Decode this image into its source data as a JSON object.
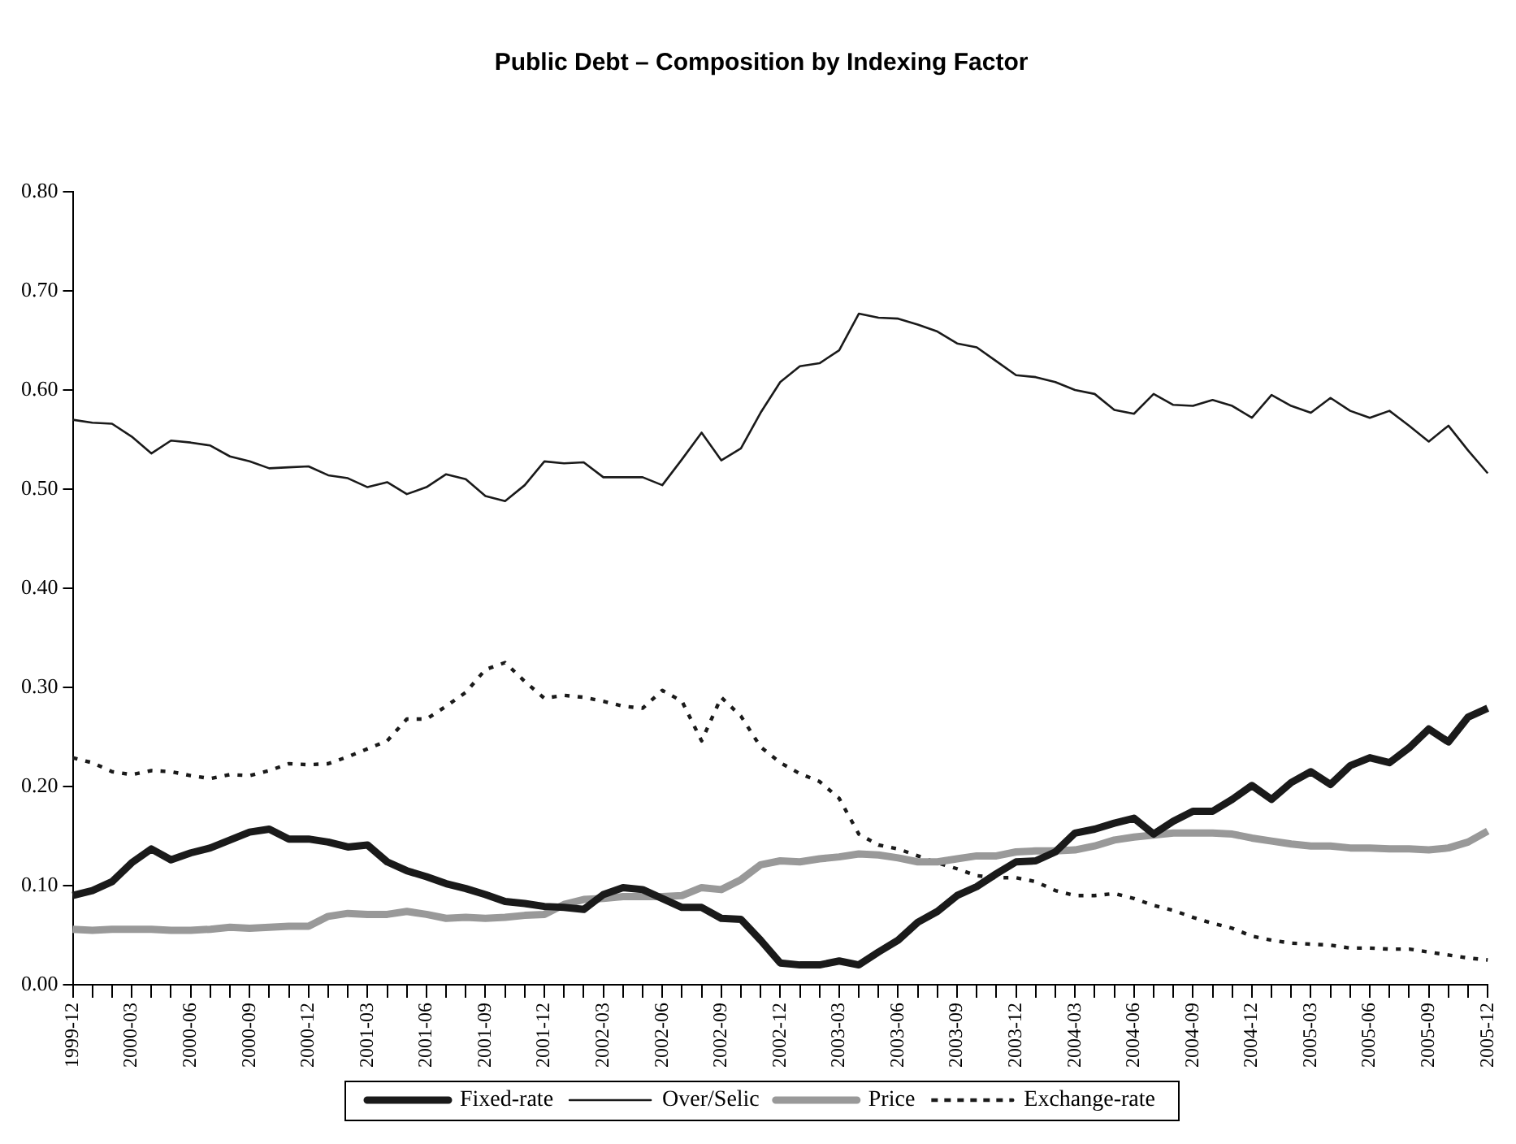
{
  "chart_data": {
    "type": "line",
    "title": "Public Debt – Composition by Indexing Factor",
    "categories": [
      "1999-12",
      null,
      null,
      "2000-03",
      null,
      null,
      "2000-06",
      null,
      null,
      "2000-09",
      null,
      null,
      "2000-12",
      null,
      null,
      "2001-03",
      null,
      null,
      "2001-06",
      null,
      null,
      "2001-09",
      null,
      null,
      "2001-12",
      null,
      null,
      "2002-03",
      null,
      null,
      "2002-06",
      null,
      null,
      "2002-09",
      null,
      null,
      "2002-12",
      null,
      null,
      "2003-03",
      null,
      null,
      "2003-06",
      null,
      null,
      "2003-09",
      null,
      null,
      "2003-12",
      null,
      null,
      "2004-03",
      null,
      null,
      "2004-06",
      null,
      null,
      "2004-09",
      null,
      null,
      "2004-12",
      null,
      null,
      "2005-03",
      null,
      null,
      "2005-06",
      null,
      null,
      "2005-09",
      null,
      null,
      "2005-12"
    ],
    "ylim": [
      0,
      0.8
    ],
    "yticks": [
      {
        "value": 0,
        "label": "0.00"
      },
      {
        "value": 0.1,
        "label": "0.10"
      },
      {
        "value": 0.2,
        "label": "0.20"
      },
      {
        "value": 0.3,
        "label": "0.30"
      },
      {
        "value": 0.4,
        "label": "0.40"
      },
      {
        "value": 0.5,
        "label": "0.50"
      },
      {
        "value": 0.6,
        "label": "0.60"
      },
      {
        "value": 0.7,
        "label": "0.70"
      },
      {
        "value": 0.8,
        "label": "0.80"
      }
    ],
    "grid": false,
    "legend": "bottom",
    "marker": "none",
    "series": [
      {
        "name": "Fixed-rate",
        "color": "#1a1a1a",
        "line_style": "solid",
        "values": [
          0.09,
          0.095,
          0.104,
          0.123,
          0.137,
          0.126,
          0.133,
          0.138,
          0.146,
          0.154,
          0.157,
          0.147,
          0.147,
          0.144,
          0.139,
          0.141,
          0.124,
          0.115,
          0.109,
          0.102,
          0.097,
          0.091,
          0.084,
          0.082,
          0.079,
          0.078,
          0.076,
          0.091,
          0.098,
          0.096,
          0.087,
          0.078,
          0.078,
          0.067,
          0.066,
          0.045,
          0.022,
          0.02,
          0.02,
          0.024,
          0.02,
          0.033,
          0.045,
          0.063,
          0.074,
          0.09,
          0.099,
          0.112,
          0.124,
          0.125,
          0.134,
          0.153,
          0.157,
          0.163,
          0.168,
          0.152,
          0.165,
          0.175,
          0.175,
          0.187,
          0.201,
          0.187,
          0.204,
          0.215,
          0.202,
          0.221,
          0.229,
          0.224,
          0.239,
          0.258,
          0.245,
          0.27,
          0.279
        ]
      },
      {
        "name": "Over/Selic",
        "color": "#1a1a1a",
        "line_style": "solid",
        "values": [
          0.57,
          0.567,
          0.566,
          0.553,
          0.536,
          0.549,
          0.547,
          0.544,
          0.533,
          0.528,
          0.521,
          0.522,
          0.523,
          0.514,
          0.511,
          0.502,
          0.507,
          0.495,
          0.502,
          0.515,
          0.51,
          0.493,
          0.488,
          0.504,
          0.528,
          0.526,
          0.527,
          0.512,
          0.512,
          0.512,
          0.504,
          0.53,
          0.557,
          0.529,
          0.541,
          0.577,
          0.608,
          0.624,
          0.627,
          0.64,
          0.677,
          0.673,
          0.672,
          0.666,
          0.659,
          0.647,
          0.643,
          0.629,
          0.615,
          0.613,
          0.608,
          0.6,
          0.596,
          0.58,
          0.576,
          0.596,
          0.585,
          0.584,
          0.59,
          0.584,
          0.572,
          0.595,
          0.584,
          0.577,
          0.592,
          0.579,
          0.572,
          0.579,
          0.564,
          0.548,
          0.564,
          0.539,
          0.516
        ]
      },
      {
        "name": "Price",
        "color": "#999999",
        "line_style": "solid",
        "values": [
          0.056,
          0.055,
          0.056,
          0.056,
          0.056,
          0.055,
          0.055,
          0.056,
          0.058,
          0.057,
          0.058,
          0.059,
          0.059,
          0.069,
          0.072,
          0.071,
          0.071,
          0.074,
          0.071,
          0.067,
          0.068,
          0.067,
          0.068,
          0.07,
          0.071,
          0.081,
          0.086,
          0.087,
          0.089,
          0.089,
          0.089,
          0.09,
          0.098,
          0.096,
          0.106,
          0.121,
          0.125,
          0.124,
          0.127,
          0.129,
          0.132,
          0.131,
          0.128,
          0.124,
          0.124,
          0.127,
          0.13,
          0.13,
          0.134,
          0.135,
          0.135,
          0.136,
          0.14,
          0.146,
          0.149,
          0.151,
          0.153,
          0.153,
          0.153,
          0.152,
          0.148,
          0.145,
          0.142,
          0.14,
          0.14,
          0.138,
          0.138,
          0.137,
          0.137,
          0.136,
          0.138,
          0.144,
          0.155
        ]
      },
      {
        "name": "Exchange-rate",
        "color": "#1a1a1a",
        "line_style": "dotted",
        "values": [
          0.229,
          0.224,
          0.215,
          0.212,
          0.216,
          0.215,
          0.211,
          0.208,
          0.212,
          0.211,
          0.216,
          0.223,
          0.222,
          0.223,
          0.23,
          0.238,
          0.246,
          0.268,
          0.268,
          0.281,
          0.295,
          0.318,
          0.325,
          0.306,
          0.289,
          0.292,
          0.29,
          0.286,
          0.281,
          0.279,
          0.297,
          0.286,
          0.246,
          0.29,
          0.271,
          0.24,
          0.224,
          0.213,
          0.205,
          0.188,
          0.152,
          0.141,
          0.137,
          0.13,
          0.123,
          0.117,
          0.11,
          0.108,
          0.108,
          0.104,
          0.095,
          0.09,
          0.09,
          0.092,
          0.087,
          0.08,
          0.075,
          0.068,
          0.062,
          0.057,
          0.049,
          0.045,
          0.042,
          0.041,
          0.04,
          0.037,
          0.037,
          0.036,
          0.036,
          0.033,
          0.03,
          0.027,
          0.025
        ]
      }
    ]
  }
}
